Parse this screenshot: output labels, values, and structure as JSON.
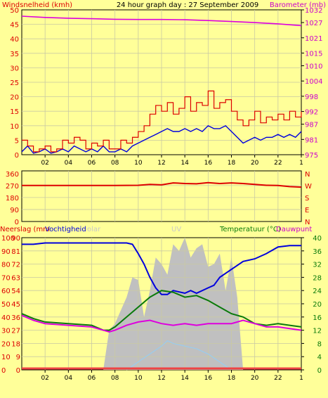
{
  "header": {
    "left_label": "Windsnelheid (kmh)",
    "title": "24 hour graph day : 27 September 2009",
    "right_label": "Barometer (mb)"
  },
  "labels": {
    "rain": "Neerslag (mm",
    "humidity": "Vochtigheid",
    "solar": "olar",
    "uv": "UV",
    "temperature": "Temperatuur (°C)",
    "dewpoint": "Dauwpunt"
  },
  "colors": {
    "background": "#ffff99",
    "wind": "#0000dd",
    "gust": "#dd0000",
    "barometer": "#dd00dd",
    "wind_dir": "#dd0000",
    "humidity": "#0000dd",
    "temperature": "#0a7a0a",
    "dewpoint": "#dd00dd",
    "solar": "#c0c0c0",
    "uv": "#99ccee",
    "rain": "#ee4444",
    "left_axis_text": "#dd0000",
    "right_axis_text": "#cc00cc",
    "temp_axis_text": "#0a7a0a"
  },
  "chart_data": [
    {
      "type": "line",
      "title": "24 hour graph day : 27 September 2009",
      "x_ticks": [
        "02",
        "04",
        "06",
        "08",
        "10",
        "12",
        "14",
        "16",
        "18",
        "20",
        "22",
        "1"
      ],
      "xlim": [
        0,
        24
      ],
      "y_left": {
        "label": "Windsnelheid (kmh)",
        "lim": [
          0,
          50
        ],
        "ticks": [
          0,
          5,
          10,
          15,
          20,
          25,
          30,
          35,
          40,
          45,
          50
        ]
      },
      "y_right": {
        "label": "Barometer (mb)",
        "lim": [
          975,
          1032
        ],
        "ticks": [
          975,
          981,
          987,
          992,
          998,
          1004,
          1010,
          1015,
          1021,
          1027,
          1032
        ]
      },
      "series": [
        {
          "name": "Barometer",
          "axis": "right",
          "x": [
            0,
            2,
            4,
            6,
            8,
            10,
            12,
            14,
            16,
            18,
            20,
            22,
            24
          ],
          "y": [
            1029.5,
            1029,
            1028.7,
            1028.5,
            1028.3,
            1028.2,
            1028.2,
            1028.1,
            1027.8,
            1027.4,
            1027,
            1026.5,
            1025.8
          ]
        },
        {
          "axis": "left",
          "role": "wind",
          "x": [
            0,
            0.5,
            1,
            1.5,
            2,
            2.5,
            3,
            3.5,
            4,
            4.5,
            5,
            5.5,
            6,
            6.5,
            7,
            7.5,
            8,
            8.5,
            9,
            9.5,
            10,
            10.5,
            11,
            11.5,
            12,
            12.5,
            13,
            13.5,
            14,
            14.5,
            15,
            15.5,
            16,
            16.5,
            17,
            17.5,
            18,
            18.5,
            19,
            19.5,
            20,
            20.5,
            21,
            21.5,
            22,
            22.5,
            23,
            23.5,
            24
          ],
          "y": [
            1,
            3,
            0.5,
            1,
            2,
            0.5,
            1,
            2,
            1,
            3,
            2,
            1,
            2,
            1,
            3,
            1,
            1,
            2,
            1,
            3,
            4,
            5,
            6,
            7,
            8,
            9,
            8,
            8,
            9,
            8,
            9,
            8,
            10,
            9,
            9,
            10,
            8,
            6,
            4,
            5,
            6,
            5,
            6,
            6,
            7,
            6,
            7,
            6,
            8
          ]
        },
        {
          "axis": "left",
          "role": "gust",
          "x": [
            0,
            0.5,
            1,
            1.5,
            2,
            2.5,
            3,
            3.5,
            4,
            4.5,
            5,
            5.5,
            6,
            6.5,
            7,
            7.5,
            8,
            8.5,
            9,
            9.5,
            10,
            10.5,
            11,
            11.5,
            12,
            12.5,
            13,
            13.5,
            14,
            14.5,
            15,
            15.5,
            16,
            16.5,
            17,
            17.5,
            18,
            18.5,
            19,
            19.5,
            20,
            20.5,
            21,
            21.5,
            22,
            22.5,
            23,
            23.5,
            24
          ],
          "y": [
            5,
            3,
            1,
            2,
            3,
            1,
            2,
            5,
            4,
            6,
            5,
            2,
            4,
            3,
            5,
            2,
            2,
            5,
            4,
            6,
            8,
            10,
            14,
            17,
            15,
            18,
            14,
            16,
            20,
            15,
            18,
            17,
            22,
            16,
            18,
            19,
            15,
            12,
            10,
            12,
            15,
            11,
            13,
            12,
            14,
            12,
            15,
            13,
            15
          ]
        }
      ]
    },
    {
      "type": "line",
      "y_labels": [
        "360",
        "270",
        "180",
        "90",
        "0"
      ],
      "y_ticks": [
        360,
        270,
        180,
        90,
        0
      ],
      "ylim": [
        0,
        380
      ],
      "right_labels": [
        "N",
        "W",
        "S",
        "E",
        "N"
      ],
      "series": [
        {
          "role": "wind_direction",
          "x": [
            0,
            2,
            4,
            6,
            8,
            10,
            11,
            12,
            13,
            14,
            15,
            16,
            17,
            18,
            19,
            20,
            21,
            22,
            23,
            24
          ],
          "y": [
            270,
            270,
            270,
            270,
            270,
            272,
            278,
            275,
            290,
            285,
            283,
            292,
            285,
            290,
            285,
            278,
            272,
            270,
            262,
            258
          ]
        }
      ]
    },
    {
      "type": "area",
      "xlim": [
        0,
        24
      ],
      "y_left": {
        "ticks": [
          0,
          10,
          20,
          30,
          40,
          50,
          60,
          70,
          80,
          90,
          100
        ],
        "lim": [
          0,
          100
        ]
      },
      "y_left_inner": {
        "ticks": [
          0,
          9,
          18,
          27,
          36,
          45,
          54,
          63,
          72,
          81,
          90
        ],
        "lim": [
          0,
          100
        ]
      },
      "y_right": {
        "label": "Temperatuur (°C)",
        "ticks": [
          0,
          4,
          8,
          12,
          16,
          20,
          24,
          28,
          32,
          36,
          40
        ],
        "lim": [
          0,
          40
        ]
      },
      "series": [
        {
          "name": "Vochtigheid",
          "axis": "left",
          "x": [
            0,
            1,
            2,
            4,
            6,
            8,
            9,
            9.5,
            10,
            10.5,
            11,
            11.5,
            12,
            12.5,
            13,
            14,
            14.5,
            15,
            16,
            16.5,
            17,
            18,
            19,
            20,
            21,
            22,
            23,
            24
          ],
          "y": [
            95,
            95,
            96,
            96,
            96,
            96,
            96,
            95,
            88,
            80,
            70,
            62,
            57,
            57,
            60,
            58,
            60,
            58,
            62,
            64,
            70,
            76,
            82,
            84,
            88,
            93,
            94,
            94
          ]
        },
        {
          "name": "Temperatuur",
          "axis": "right",
          "x": [
            0,
            1,
            2,
            4,
            6,
            7,
            7.5,
            8,
            9,
            10,
            11,
            12,
            13,
            14,
            15,
            16,
            17,
            18,
            19,
            20,
            21,
            22,
            23,
            24
          ],
          "y": [
            17,
            15.5,
            14.5,
            14,
            13.5,
            12,
            12,
            13,
            16,
            19,
            22,
            24,
            23.5,
            22,
            22.5,
            21,
            19,
            17,
            16,
            14,
            13.5,
            14,
            13.5,
            13
          ]
        },
        {
          "name": "Dauwpunt",
          "axis": "right",
          "x": [
            0,
            1,
            2,
            4,
            6,
            7,
            7.5,
            8,
            9,
            10,
            11,
            12,
            13,
            14,
            15,
            16,
            17,
            18,
            19,
            20,
            21,
            22,
            23,
            24
          ],
          "y": [
            16.5,
            15,
            14,
            13.5,
            13,
            12,
            11.5,
            12,
            13.5,
            14.5,
            15,
            14,
            13.5,
            14,
            13.5,
            14,
            14,
            14,
            15,
            14,
            13,
            13,
            12.5,
            12
          ]
        },
        {
          "name": "Solar",
          "axis": "left",
          "x": [
            7,
            7.5,
            8,
            8.5,
            9,
            9.5,
            10,
            10.5,
            11,
            11.5,
            12,
            12.5,
            13,
            13.5,
            14,
            14.5,
            15,
            15.5,
            16,
            16.5,
            17,
            17.5,
            18,
            18.5,
            19
          ],
          "y": [
            0,
            30,
            35,
            45,
            55,
            70,
            68,
            40,
            60,
            85,
            80,
            72,
            95,
            90,
            100,
            85,
            92,
            95,
            78,
            80,
            88,
            60,
            85,
            55,
            0
          ]
        },
        {
          "name": "UV",
          "axis": "left",
          "x": [
            9,
            10,
            11,
            12,
            12.5,
            13,
            14,
            15,
            16,
            17,
            18
          ],
          "y": [
            0,
            6,
            12,
            18,
            22,
            20,
            18,
            16,
            12,
            6,
            0
          ]
        },
        {
          "name": "Neerslag",
          "axis": "left",
          "x": [
            0,
            24
          ],
          "y": [
            0,
            0
          ]
        }
      ]
    }
  ]
}
